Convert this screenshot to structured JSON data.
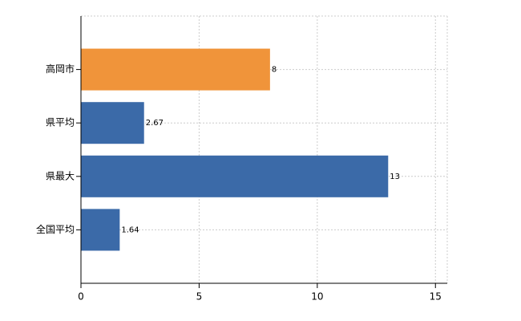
{
  "chart_data": {
    "type": "barh",
    "categories": [
      "高岡市",
      "県平均",
      "県最大",
      "全国平均"
    ],
    "values": [
      8,
      2.67,
      13,
      1.64
    ],
    "colors": [
      "#f0943a",
      "#3b6aa8",
      "#3b6aa8",
      "#3b6aa8"
    ],
    "xlim": [
      0,
      15.5
    ],
    "xticks": [
      0,
      5,
      10,
      15
    ],
    "grid": true
  }
}
